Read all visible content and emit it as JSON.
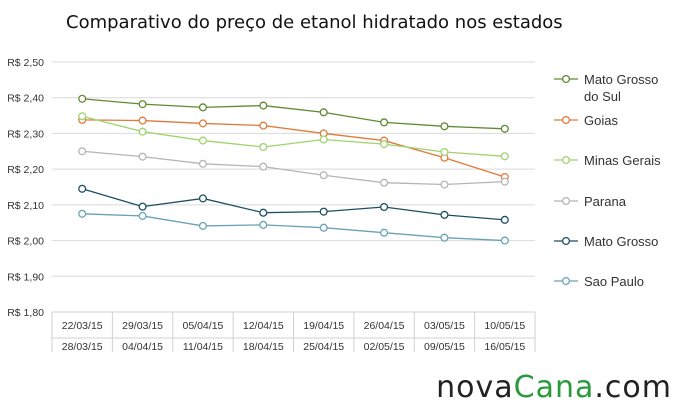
{
  "chart_data": {
    "type": "line",
    "title": "Comparativo do preço de etanol hidratado nos estados",
    "xlabel": "",
    "ylabel": "",
    "ylim": [
      1.8,
      2.5
    ],
    "yticks": [
      "R$ 2,50",
      "R$ 2,40",
      "R$ 2,30",
      "R$ 2,20",
      "R$ 2,10",
      "R$ 2,00",
      "R$ 1,90",
      "R$ 1,80"
    ],
    "yticks_values": [
      2.5,
      2.4,
      2.3,
      2.2,
      2.1,
      2.0,
      1.9,
      1.8
    ],
    "categories": [
      {
        "start": "22/03/15",
        "end": "28/03/15"
      },
      {
        "start": "29/03/15",
        "end": "04/04/15"
      },
      {
        "start": "05/04/15",
        "end": "11/04/15"
      },
      {
        "start": "12/04/15",
        "end": "18/04/15"
      },
      {
        "start": "19/04/15",
        "end": "25/04/15"
      },
      {
        "start": "26/04/15",
        "end": "02/05/15"
      },
      {
        "start": "03/05/15",
        "end": "09/05/15"
      },
      {
        "start": "10/05/15",
        "end": "16/05/15"
      }
    ],
    "grid": "horizontal",
    "legend": "right",
    "series": [
      {
        "name": "Mato Grosso do Sul",
        "legend_lines": [
          "Mato Grosso",
          "do Sul"
        ],
        "color": "#5f8a33",
        "values": [
          2.397,
          2.382,
          2.373,
          2.378,
          2.359,
          2.331,
          2.32,
          2.313
        ]
      },
      {
        "name": "Goias",
        "legend_lines": [
          "Goias"
        ],
        "color": "#e07a3c",
        "values": [
          2.338,
          2.336,
          2.328,
          2.322,
          2.3,
          2.28,
          2.232,
          2.178
        ]
      },
      {
        "name": "Minas Gerais",
        "legend_lines": [
          "Minas Gerais"
        ],
        "color": "#9fd36b",
        "values": [
          2.348,
          2.305,
          2.28,
          2.262,
          2.283,
          2.27,
          2.248,
          2.236
        ]
      },
      {
        "name": "Parana",
        "legend_lines": [
          "Parana"
        ],
        "color": "#b5b5b5",
        "values": [
          2.25,
          2.235,
          2.215,
          2.207,
          2.183,
          2.162,
          2.157,
          2.165
        ]
      },
      {
        "name": "Mato Grosso",
        "legend_lines": [
          "Mato Grosso"
        ],
        "color": "#1d4f63",
        "values": [
          2.145,
          2.095,
          2.118,
          2.078,
          2.081,
          2.094,
          2.072,
          2.058
        ]
      },
      {
        "name": "Sao Paulo",
        "legend_lines": [
          "Sao Paulo"
        ],
        "color": "#6aa2b6",
        "values": [
          2.075,
          2.069,
          2.041,
          2.044,
          2.036,
          2.022,
          2.008,
          2.0
        ]
      }
    ]
  },
  "branding": {
    "part1": "nova",
    "part2": "Cana",
    "part3": ".com",
    "accent_color": "#2a9a3d"
  }
}
